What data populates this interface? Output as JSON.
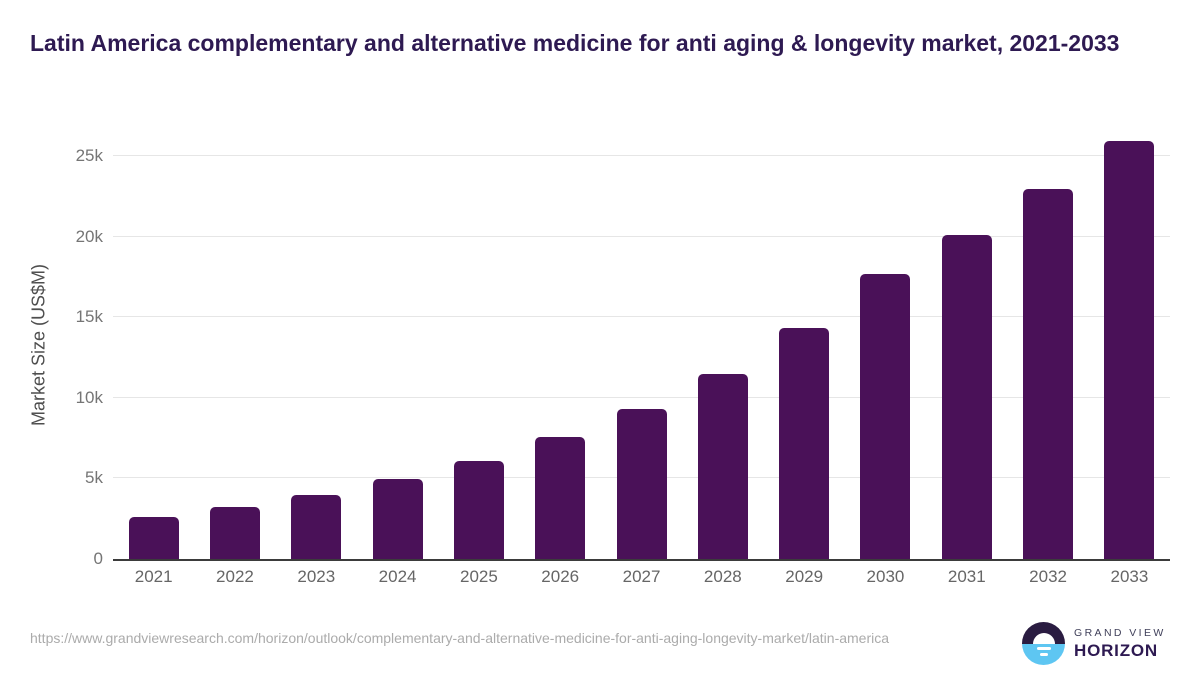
{
  "header": {
    "title": "Latin America complementary and alternative medicine for anti aging & longevity market, 2021-2033"
  },
  "chart_data": {
    "type": "bar",
    "title": "Latin America complementary and alternative medicine for anti aging & longevity market, 2021-2033",
    "categories": [
      "2021",
      "2022",
      "2023",
      "2024",
      "2025",
      "2026",
      "2027",
      "2028",
      "2029",
      "2030",
      "2031",
      "2032",
      "2033"
    ],
    "values": [
      2600,
      3250,
      4000,
      4950,
      6050,
      7550,
      9300,
      11500,
      14300,
      17700,
      20100,
      22950,
      25950
    ],
    "series_name": "Market Size",
    "xlabel": "",
    "ylabel": "Market Size (US$M)",
    "ylim": [
      0,
      26600
    ],
    "y_ticks": [
      {
        "label": "0",
        "value": 0
      },
      {
        "label": "5k",
        "value": 5000
      },
      {
        "label": "10k",
        "value": 10000
      },
      {
        "label": "15k",
        "value": 15000
      },
      {
        "label": "20k",
        "value": 20000
      },
      {
        "label": "25k",
        "value": 25000
      }
    ],
    "grid": true,
    "legend": false,
    "bar_color": "#4a1158"
  },
  "colors": {
    "title_text": "#2e1a52",
    "bar_fill": "#4a1158",
    "gridline": "#e6e6e6",
    "axis_line": "#3b3b3b",
    "tick_text": "#757575",
    "url_text": "#ababab",
    "logo_icon_top": "#2a1c41",
    "logo_icon_bottom": "#5ec6f2"
  },
  "footer": {
    "source_url": "https://www.grandviewresearch.com/horizon/outlook/complementary-and-alternative-medicine-for-anti-aging-longevity-market/latin-america",
    "logo": {
      "brand_line1": "GRAND VIEW",
      "brand_line2": "HORIZON",
      "icon": "horizon-sunrise-icon"
    }
  }
}
